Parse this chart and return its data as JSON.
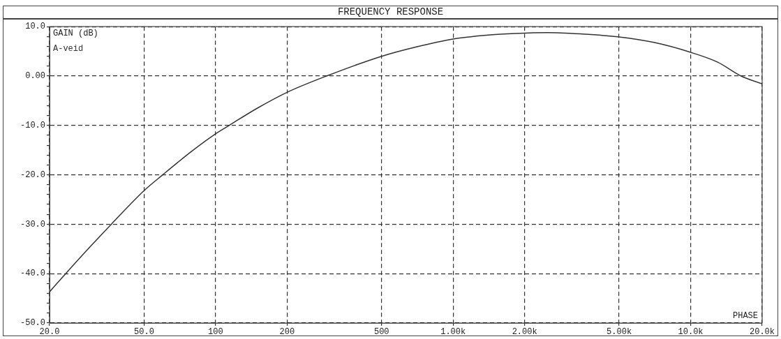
{
  "chart_data": {
    "type": "line",
    "title": "FREQUENCY RESPONSE",
    "ylabel": "GAIN (dB)",
    "x": [
      20,
      23.4,
      30,
      36.4,
      50,
      59.9,
      80,
      100,
      114,
      150,
      200,
      293,
      500,
      700,
      1000,
      1500,
      2000,
      2500,
      3500,
      5000,
      7000,
      10000,
      13000,
      16300,
      20000
    ],
    "series": [
      {
        "name": "A-veid",
        "color": "#333333",
        "values": [
          -43.7,
          -40,
          -34.3,
          -30,
          -23.2,
          -20,
          -15.1,
          -11.7,
          -10,
          -6.5,
          -3.3,
          0,
          4.0,
          5.9,
          7.5,
          8.4,
          8.7,
          8.8,
          8.5,
          7.9,
          6.8,
          4.8,
          2.8,
          0,
          -1.6
        ]
      }
    ],
    "log": "x",
    "xlim": [
      20,
      20000
    ],
    "xticks": [
      {
        "value": 20,
        "label": "20.0"
      },
      {
        "value": 50,
        "label": "50.0"
      },
      100,
      200,
      500,
      {
        "value": 1000,
        "label": "1.00k"
      },
      {
        "value": 2000,
        "label": "2.00k"
      },
      {
        "value": 5000,
        "label": "5.00k"
      },
      {
        "value": 10000,
        "label": "10.0k"
      },
      {
        "value": 20000,
        "label": "20.0k"
      }
    ],
    "ylim": [
      -50,
      10
    ],
    "yticks": [
      {
        "value": -50,
        "label": "-50.0"
      },
      {
        "value": -48,
        "label": null
      },
      {
        "value": -46,
        "label": null
      },
      {
        "value": -44,
        "label": null
      },
      {
        "value": -42,
        "label": null
      },
      {
        "value": -40,
        "label": "-40.0"
      },
      {
        "value": -38,
        "label": null
      },
      {
        "value": -36,
        "label": null
      },
      {
        "value": -34,
        "label": null
      },
      {
        "value": -32,
        "label": null
      },
      {
        "value": -30,
        "label": "-30.0"
      },
      {
        "value": -28,
        "label": null
      },
      {
        "value": -26,
        "label": null
      },
      {
        "value": -24,
        "label": null
      },
      {
        "value": -22,
        "label": null
      },
      {
        "value": -20,
        "label": "-20.0"
      },
      {
        "value": -18,
        "label": null
      },
      {
        "value": -16,
        "label": null
      },
      {
        "value": -14,
        "label": null
      },
      {
        "value": -12,
        "label": null
      },
      {
        "value": -10,
        "label": "-10.0"
      },
      {
        "value": -8,
        "label": null
      },
      {
        "value": -6,
        "label": null
      },
      {
        "value": -4,
        "label": null
      },
      {
        "value": -2,
        "label": null
      },
      {
        "value": 0,
        "label": "0.00"
      },
      {
        "value": 2,
        "label": null
      },
      {
        "value": 4,
        "label": null
      },
      {
        "value": 6,
        "label": null
      },
      {
        "value": 8,
        "label": null
      },
      {
        "value": 10,
        "label": "10.0"
      }
    ],
    "grid": true,
    "line_style": "solid",
    "marker": "none",
    "legend": false,
    "annotations": [
      "PHASE"
    ]
  }
}
